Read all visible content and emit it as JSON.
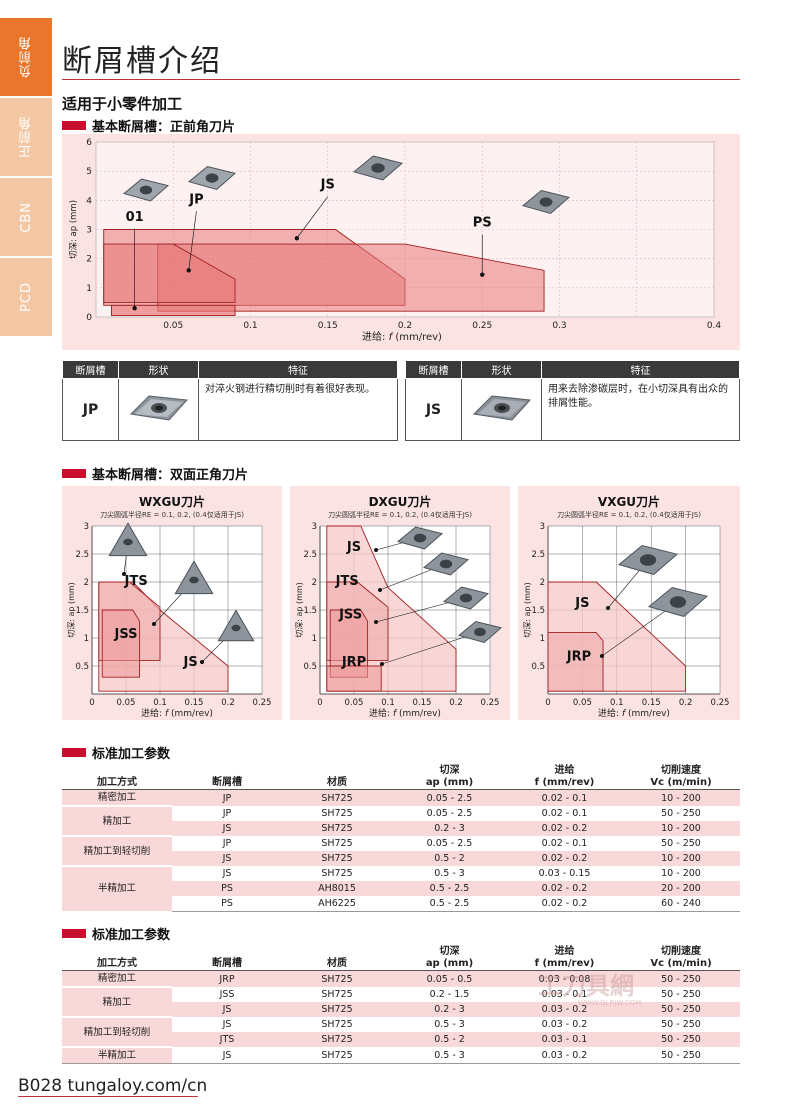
{
  "sidetabs": [
    "负前角",
    "正前角",
    "CBN",
    "PCD"
  ],
  "title": "断屑槽介绍",
  "section_title": "适用于小零件加工",
  "sub1": "基本断屑槽：正前角刀片",
  "sub2": "基本断屑槽：双面正角刀片",
  "sub3": "标准加工参数",
  "sub4": "标准加工参数",
  "chart_data": [
    {
      "type": "area",
      "xlabel_prefix": "进给: ",
      "xlabel_var": "f",
      "xlabel_unit": " (mm/rev)",
      "ylabel": "切深: ap (mm)",
      "xlim": [
        0,
        0.4
      ],
      "ylim": [
        0,
        6
      ],
      "xticks": [
        "0.05",
        "0.1",
        "0.15",
        "0.2",
        "0.25",
        "0.3",
        "0.4"
      ],
      "xtick_values": [
        0.05,
        0.1,
        0.15,
        0.2,
        0.25,
        0.3,
        0.4
      ],
      "yticks": [
        "0",
        "1",
        "2",
        "3",
        "4",
        "5",
        "6"
      ],
      "series": [
        {
          "name": "JS",
          "polygon": [
            [
              0.005,
              0.4
            ],
            [
              0.005,
              3.0
            ],
            [
              0.155,
              3.0
            ],
            [
              0.2,
              1.3
            ],
            [
              0.2,
              0.4
            ]
          ],
          "marker": [
            0.13,
            2.7
          ],
          "label_at": [
            0.15,
            4.4
          ]
        },
        {
          "name": "PS",
          "polygon": [
            [
              0.04,
              0.2
            ],
            [
              0.04,
              2.5
            ],
            [
              0.2,
              2.5
            ],
            [
              0.29,
              1.6
            ],
            [
              0.29,
              0.2
            ]
          ],
          "marker": [
            0.25,
            1.45
          ],
          "label_at": [
            0.25,
            3.1
          ]
        },
        {
          "name": "JP",
          "polygon": [
            [
              0.005,
              0.5
            ],
            [
              0.005,
              2.5
            ],
            [
              0.05,
              2.5
            ],
            [
              0.09,
              1.3
            ],
            [
              0.09,
              0.5
            ]
          ],
          "marker": [
            0.06,
            1.6
          ],
          "label_at": [
            0.065,
            3.9
          ]
        },
        {
          "name": "01",
          "polygon": [
            [
              0.01,
              0.05
            ],
            [
              0.01,
              0.4
            ],
            [
              0.09,
              0.4
            ],
            [
              0.09,
              0.05
            ]
          ],
          "marker": [
            0.025,
            0.3
          ],
          "label_at": [
            0.025,
            3.3
          ]
        }
      ]
    },
    {
      "type": "area",
      "title": "WXGU刀片",
      "note": "刀尖圆弧半径RE = 0.1, 0.2, (0.4仅适用于JS)",
      "xlabel_prefix": "进给: ",
      "xlabel_var": "f",
      "xlabel_unit": " (mm/rev)",
      "ylabel": "切深: ap (mm)",
      "xlim": [
        0,
        0.25
      ],
      "ylim": [
        0,
        3
      ],
      "xticks": [
        "0",
        "0.05",
        "0.1",
        "0.15",
        "0.2",
        "0.25"
      ],
      "yticks": [
        "0.5",
        "1",
        "1.5",
        "2",
        "2.5",
        "3"
      ],
      "series": [
        {
          "name": "JS",
          "polygon": [
            [
              0.01,
              0.05
            ],
            [
              0.01,
              2.0
            ],
            [
              0.06,
              2.0
            ],
            [
              0.1,
              1.5
            ],
            [
              0.2,
              0.5
            ],
            [
              0.2,
              0.05
            ]
          ]
        },
        {
          "name": "JTS",
          "polygon": [
            [
              0.01,
              0.6
            ],
            [
              0.01,
              2.0
            ],
            [
              0.055,
              2.0
            ],
            [
              0.1,
              1.55
            ],
            [
              0.1,
              0.6
            ]
          ]
        },
        {
          "name": "JSS",
          "polygon": [
            [
              0.015,
              0.3
            ],
            [
              0.015,
              1.5
            ],
            [
              0.06,
              1.5
            ],
            [
              0.07,
              1.3
            ],
            [
              0.07,
              0.3
            ]
          ]
        }
      ]
    },
    {
      "type": "area",
      "title": "DXGU刀片",
      "note": "刀尖圆弧半径RE = 0.1, 0.2, (0.4仅适用于JS)",
      "xlabel_prefix": "进给: ",
      "xlabel_var": "f",
      "xlabel_unit": " (mm/rev)",
      "ylabel": "切深: ap (mm)",
      "xlim": [
        0,
        0.25
      ],
      "ylim": [
        0,
        3
      ],
      "xticks": [
        "0",
        "0.05",
        "0.1",
        "0.15",
        "0.2",
        "0.25"
      ],
      "yticks": [
        "0.5",
        "1",
        "1.5",
        "2",
        "2.5",
        "3"
      ],
      "series": [
        {
          "name": "JS",
          "polygon": [
            [
              0.01,
              0.05
            ],
            [
              0.01,
              3.0
            ],
            [
              0.06,
              3.0
            ],
            [
              0.1,
              1.9
            ],
            [
              0.2,
              0.8
            ],
            [
              0.2,
              0.05
            ]
          ]
        },
        {
          "name": "JTS",
          "polygon": [
            [
              0.01,
              0.6
            ],
            [
              0.01,
              2.0
            ],
            [
              0.055,
              2.0
            ],
            [
              0.1,
              1.55
            ],
            [
              0.1,
              0.6
            ]
          ]
        },
        {
          "name": "JSS",
          "polygon": [
            [
              0.015,
              0.3
            ],
            [
              0.015,
              1.5
            ],
            [
              0.06,
              1.5
            ],
            [
              0.07,
              1.3
            ],
            [
              0.07,
              0.3
            ]
          ]
        },
        {
          "name": "JRP",
          "polygon": [
            [
              0.01,
              0.05
            ],
            [
              0.01,
              0.5
            ],
            [
              0.09,
              0.5
            ],
            [
              0.09,
              0.05
            ]
          ]
        }
      ]
    },
    {
      "type": "area",
      "title": "VXGU刀片",
      "note": "刀尖圆弧半径RE = 0.1, 0.2, (0.4仅适用于JS)",
      "xlabel_prefix": "进给: ",
      "xlabel_var": "f",
      "xlabel_unit": " (mm/rev)",
      "ylabel": "切深: ap (mm)",
      "xlim": [
        0,
        0.25
      ],
      "ylim": [
        0,
        3
      ],
      "xticks": [
        "0",
        "0.05",
        "0.1",
        "0.15",
        "0.2",
        "0.25"
      ],
      "yticks": [
        "0.5",
        "1",
        "1.5",
        "2",
        "2.5",
        "3"
      ],
      "series": [
        {
          "name": "JS",
          "polygon": [
            [
              0.0,
              0.05
            ],
            [
              0.0,
              2.0
            ],
            [
              0.07,
              2.0
            ],
            [
              0.2,
              0.5
            ],
            [
              0.2,
              0.05
            ]
          ]
        },
        {
          "name": "JRP",
          "polygon": [
            [
              0.0,
              0.05
            ],
            [
              0.0,
              1.1
            ],
            [
              0.07,
              1.1
            ],
            [
              0.08,
              0.95
            ],
            [
              0.08,
              0.05
            ]
          ]
        }
      ]
    }
  ],
  "ftable": {
    "headers": [
      "断屑槽",
      "形状",
      "特征"
    ],
    "left": {
      "code": "JP",
      "desc": "对淬火钢进行精切削时有着很好表现。"
    },
    "right": {
      "code": "JS",
      "desc": "用来去除渗碳层时，在小切深具有出众的排屑性能。"
    }
  },
  "params_headers": {
    "method": "加工方式",
    "chip": "断屑槽",
    "grade": "材质",
    "ap1": "切深",
    "ap2": "ap (mm)",
    "f1": "进给",
    "f2": "f (mm/rev)",
    "vc1": "切削速度",
    "vc2": "Vc (m/min)"
  },
  "params1": {
    "groups": [
      {
        "method": "精密加工",
        "rows": [
          [
            "JP",
            "SH725",
            "0.05 - 2.5",
            "0.02 - 0.1",
            "10 - 200"
          ]
        ]
      },
      {
        "method": "精加工",
        "rows": [
          [
            "JP",
            "SH725",
            "0.05 - 2.5",
            "0.02 - 0.1",
            "50 - 250"
          ],
          [
            "JS",
            "SH725",
            "0.2 - 3",
            "0.02 - 0.2",
            "10 - 200"
          ]
        ]
      },
      {
        "method": "精加工到轻切削",
        "rows": [
          [
            "JP",
            "SH725",
            "0.05 - 2.5",
            "0.02 - 0.1",
            "50 - 250"
          ],
          [
            "JS",
            "SH725",
            "0.5 - 2",
            "0.02 - 0.2",
            "10 - 200"
          ]
        ]
      },
      {
        "method": "半精加工",
        "rows": [
          [
            "JS",
            "SH725",
            "0.5 - 3",
            "0.03 - 0.15",
            "10 - 200"
          ],
          [
            "PS",
            "AH8015",
            "0.5 - 2.5",
            "0.02 - 0.2",
            "20 - 200"
          ],
          [
            "PS",
            "AH6225",
            "0.5 - 2.5",
            "0.02 - 0.2",
            "60 - 240"
          ]
        ]
      }
    ]
  },
  "params2": {
    "groups": [
      {
        "method": "精密加工",
        "rows": [
          [
            "JRP",
            "SH725",
            "0.05 - 0.5",
            "0.03 - 0.08",
            "50 - 250"
          ]
        ]
      },
      {
        "method": "精加工",
        "rows": [
          [
            "JSS",
            "SH725",
            "0.2 - 1.5",
            "0.03 - 0.1",
            "50 - 250"
          ],
          [
            "JS",
            "SH725",
            "0.2 - 3",
            "0.03 - 0.2",
            "50 - 250"
          ]
        ]
      },
      {
        "method": "精加工到轻切削",
        "rows": [
          [
            "JS",
            "SH725",
            "0.5 - 3",
            "0.03 - 0.2",
            "50 - 250"
          ],
          [
            "JTS",
            "SH725",
            "0.5 - 2",
            "0.03 - 0.1",
            "50 - 250"
          ]
        ]
      },
      {
        "method": "半精加工",
        "rows": [
          [
            "JS",
            "SH725",
            "0.5 - 3",
            "0.03 - 0.2",
            "50 - 250"
          ]
        ]
      }
    ]
  },
  "footer": {
    "page": "B028",
    "url": "tungaloy.com/cn"
  },
  "watermark": {
    "main": "工刀具網",
    "sub": "WWW.GLRJW.COM"
  }
}
